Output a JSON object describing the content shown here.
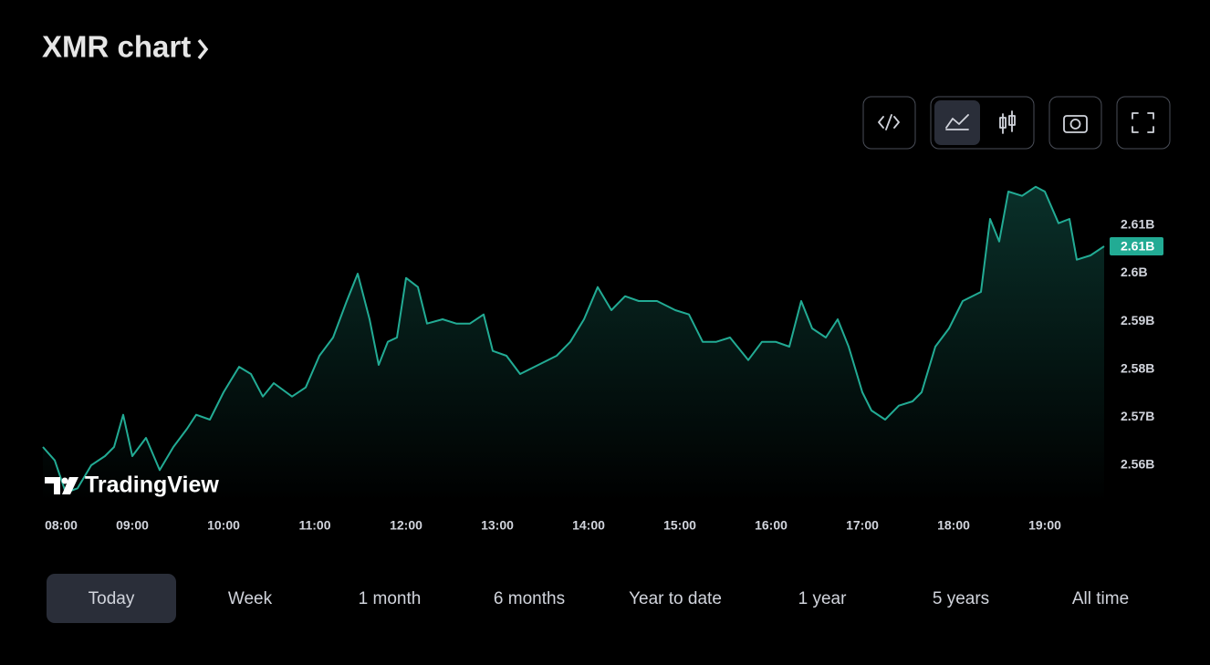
{
  "header": {
    "title": "XMR chart"
  },
  "watermark": "TradingView",
  "chart_data": {
    "type": "line",
    "color": "#22ab94",
    "x": [
      8.02,
      8.15,
      8.27,
      8.4,
      8.55,
      8.7,
      8.8,
      8.9,
      9.0,
      9.15,
      9.3,
      9.45,
      9.6,
      9.7,
      9.85,
      10,
      10.17,
      10.3,
      10.43,
      10.55,
      10.75,
      10.9,
      11.05,
      11.2,
      11.35,
      11.47,
      11.6,
      11.7,
      11.8,
      11.9,
      12,
      12.13,
      12.23,
      12.4,
      12.55,
      12.7,
      12.85,
      12.95,
      13.1,
      13.25,
      13.45,
      13.65,
      13.8,
      13.95,
      14.1,
      14.25,
      14.4,
      14.55,
      14.75,
      14.95,
      15.1,
      15.25,
      15.4,
      15.55,
      15.75,
      15.9,
      16.05,
      16.2,
      16.33,
      16.45,
      16.6,
      16.73,
      16.85,
      17,
      17.1,
      17.25,
      17.4,
      17.55,
      17.65,
      17.8,
      17.95,
      18.1,
      18.3,
      18.4,
      18.5,
      18.6,
      18.75,
      18.9,
      19,
      19.15,
      19.27,
      19.35,
      19.5,
      19.65
    ],
    "values": [
      2.5638,
      2.561,
      2.5543,
      2.5552,
      2.56,
      2.5619,
      2.5638,
      2.5705,
      2.5619,
      2.5657,
      2.559,
      2.5638,
      2.5676,
      2.5705,
      2.5695,
      2.5752,
      2.5805,
      2.579,
      2.5743,
      2.5771,
      2.5743,
      2.5762,
      2.5828,
      2.5866,
      2.5942,
      2.5999,
      2.5904,
      2.5809,
      2.5857,
      2.5866,
      2.599,
      2.5971,
      2.5895,
      2.5904,
      2.5895,
      2.5895,
      2.5914,
      2.5838,
      2.5828,
      2.579,
      2.5809,
      2.5828,
      2.5857,
      2.5904,
      2.5971,
      2.5923,
      2.5952,
      2.5942,
      2.5942,
      2.5923,
      2.5914,
      2.5857,
      2.5857,
      2.5866,
      2.5819,
      2.5857,
      2.5857,
      2.5847,
      2.5942,
      2.5885,
      2.5866,
      2.5904,
      2.5847,
      2.5752,
      2.5714,
      2.5695,
      2.5724,
      2.5733,
      2.5752,
      2.5847,
      2.5885,
      2.5942,
      2.5961,
      2.6113,
      2.6066,
      2.617,
      2.6161,
      2.618,
      2.617,
      2.6104,
      2.6113,
      2.6028,
      2.6037,
      2.6056
    ],
    "last_value_label": "2.61B",
    "xlim": [
      8.0,
      19.68
    ],
    "xticks": [
      {
        "value": 8,
        "label": "08:00"
      },
      {
        "value": 9,
        "label": "09:00"
      },
      {
        "value": 10,
        "label": "10:00"
      },
      {
        "value": 11,
        "label": "11:00"
      },
      {
        "value": 12,
        "label": "12:00"
      },
      {
        "value": 13,
        "label": "13:00"
      },
      {
        "value": 14,
        "label": "14:00"
      },
      {
        "value": 15,
        "label": "15:00"
      },
      {
        "value": 16,
        "label": "16:00"
      },
      {
        "value": 17,
        "label": "17:00"
      },
      {
        "value": 18,
        "label": "18:00"
      },
      {
        "value": 19,
        "label": "19:00"
      }
    ],
    "ylim": [
      2.5524,
      2.6208
    ],
    "yticks": [
      {
        "value": 2.56,
        "label": "2.56B"
      },
      {
        "value": 2.57,
        "label": "2.57B"
      },
      {
        "value": 2.58,
        "label": "2.58B"
      },
      {
        "value": 2.59,
        "label": "2.59B"
      },
      {
        "value": 2.6,
        "label": "2.6B"
      },
      {
        "value": 2.61,
        "label": "2.61B"
      }
    ],
    "grid": false
  },
  "ranges": {
    "items": [
      "Today",
      "Week",
      "1 month",
      "6 months",
      "Year to date",
      "1 year",
      "5 years",
      "All time"
    ],
    "selected": 0
  }
}
